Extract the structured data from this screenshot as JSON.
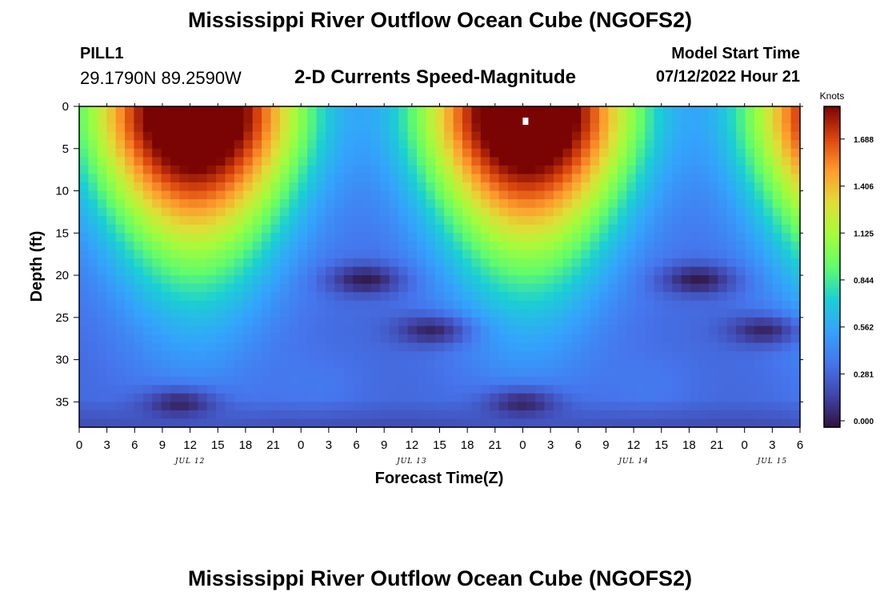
{
  "header": {
    "title": "Mississippi River Outflow Ocean Cube (NGOFS2)",
    "station_id": "PILL1",
    "station_coords": "29.1790N  89.2590W",
    "subtitle": "2-D Currents Speed-Magnitude",
    "model_start_label": "Model Start Time",
    "model_start_value": "07/12/2022 Hour 21"
  },
  "footer": {
    "title": "Mississippi River Outflow Ocean Cube (NGOFS2)"
  },
  "chart_data": {
    "type": "heatmap",
    "xlabel": "Forecast Time(Z)",
    "ylabel": "Depth (ft)",
    "x_tick_labels": [
      "0",
      "3",
      "6",
      "9",
      "12",
      "15",
      "18",
      "21",
      "0",
      "3",
      "6",
      "9",
      "12",
      "15",
      "18",
      "21",
      "0",
      "3",
      "6",
      "9",
      "12",
      "15",
      "18",
      "21",
      "0",
      "3",
      "6"
    ],
    "date_labels": [
      {
        "label": "JUL 12",
        "hour": 12
      },
      {
        "label": "JUL 13",
        "hour": 36
      },
      {
        "label": "JUL 14",
        "hour": 60
      },
      {
        "label": "JUL 15",
        "hour": 75
      }
    ],
    "xlim_hours": [
      0,
      78
    ],
    "y_ticks": [
      0,
      5,
      10,
      15,
      20,
      25,
      30,
      35
    ],
    "ylim": [
      0,
      38
    ],
    "y_inverted": true,
    "colorbar": {
      "title": "Knots",
      "ticks": [
        "0.000",
        "0.281",
        "0.562",
        "0.844",
        "1.125",
        "1.406",
        "1.688"
      ],
      "range": [
        0,
        1.85
      ]
    },
    "peaks": [
      {
        "hour": 12.5,
        "depth": 4,
        "value": 1.85
      },
      {
        "hour": 48.5,
        "depth": 2,
        "value": 1.85
      },
      {
        "hour": 78,
        "depth": 1,
        "value": 1.75
      }
    ],
    "minima": [
      {
        "hour": 11,
        "depth": 35,
        "value": 0.0
      },
      {
        "hour": 48,
        "depth": 35,
        "value": 0.05
      },
      {
        "hour": 31,
        "depth": 20.5,
        "value": 0.05
      },
      {
        "hour": 67,
        "depth": 20.5,
        "value": 0.05
      },
      {
        "hour": 38.5,
        "depth": 26.5,
        "value": 0.05
      },
      {
        "hour": 74.5,
        "depth": 26.5,
        "value": 0.05
      }
    ]
  }
}
